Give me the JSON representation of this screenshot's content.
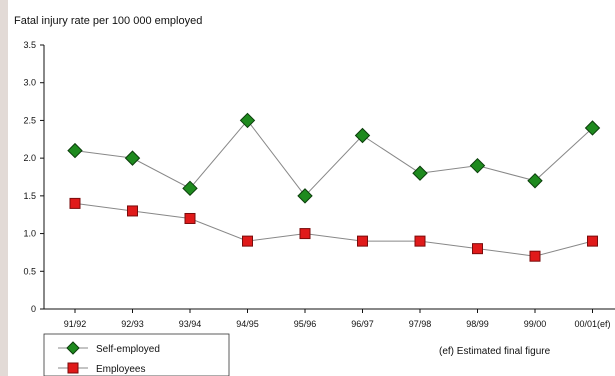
{
  "chart_data": {
    "type": "line",
    "title": "Fatal injury rate per 100 000 employed",
    "xlabel": "",
    "ylabel": "",
    "ylim": [
      0,
      3.5
    ],
    "yticks": [
      0,
      0.5,
      1.0,
      1.5,
      2.0,
      2.5,
      3.0,
      3.5
    ],
    "ytick_labels": [
      "0",
      "0.5",
      "1.0",
      "1.5",
      "2.0",
      "2.5",
      "3.0",
      "3.5"
    ],
    "categories": [
      "91/92",
      "92/93",
      "93/94",
      "94/95",
      "95/96",
      "96/97",
      "97/98",
      "98/99",
      "99/00",
      "00/01(ef)"
    ],
    "series": [
      {
        "name": "Self-employed",
        "marker": "diamond",
        "color": "#1e8a1e",
        "values": [
          2.1,
          2.0,
          1.6,
          2.5,
          1.5,
          2.3,
          1.8,
          1.9,
          1.7,
          2.4
        ]
      },
      {
        "name": "Employees",
        "marker": "square",
        "color": "#e01a1a",
        "values": [
          1.4,
          1.3,
          1.2,
          0.9,
          1.0,
          0.9,
          0.9,
          0.8,
          0.7,
          0.9
        ]
      }
    ],
    "grid": false,
    "legend_position": "bottom-left",
    "annotation": "(ef) Estimated final figure"
  },
  "colors": {
    "background": "#e2dad6",
    "panel": "#ffffff",
    "line": "#888888",
    "axis": "#111111"
  }
}
